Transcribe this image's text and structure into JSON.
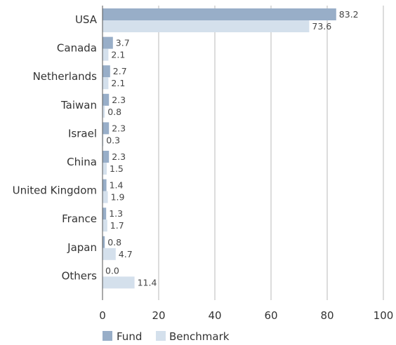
{
  "chart_data": {
    "type": "bar",
    "orientation": "horizontal",
    "categories": [
      "USA",
      "Canada",
      "Netherlands",
      "Taiwan",
      "Israel",
      "China",
      "United Kingdom",
      "France",
      "Japan",
      "Others"
    ],
    "series": [
      {
        "name": "Fund",
        "values": [
          83.2,
          3.7,
          2.7,
          2.3,
          2.3,
          2.3,
          1.4,
          1.3,
          0.8,
          0.0
        ],
        "color": "#98aec8"
      },
      {
        "name": "Benchmark",
        "values": [
          73.6,
          2.1,
          2.1,
          0.8,
          0.3,
          1.5,
          1.9,
          1.7,
          4.7,
          11.4
        ],
        "color": "#d4e0ec"
      }
    ],
    "value_labels": [
      [
        "83.2",
        "3.7",
        "2.7",
        "2.3",
        "2.3",
        "2.3",
        "1.4",
        "1.3",
        "0.8",
        "0.0"
      ],
      [
        "73.6",
        "2.1",
        "2.1",
        "0.8",
        "0.3",
        "1.5",
        "1.9",
        "1.7",
        "4.7",
        "11.4"
      ]
    ],
    "xlim": [
      0,
      100
    ],
    "xticks": [
      0,
      20,
      40,
      60,
      80,
      100
    ],
    "xtick_labels": [
      "0",
      "20",
      "40",
      "60",
      "80",
      "100"
    ],
    "grid": "vertical",
    "legend_position": "bottom-left",
    "title": "",
    "xlabel": "",
    "ylabel": ""
  },
  "legend": {
    "fund_label": "Fund",
    "benchmark_label": "Benchmark"
  }
}
